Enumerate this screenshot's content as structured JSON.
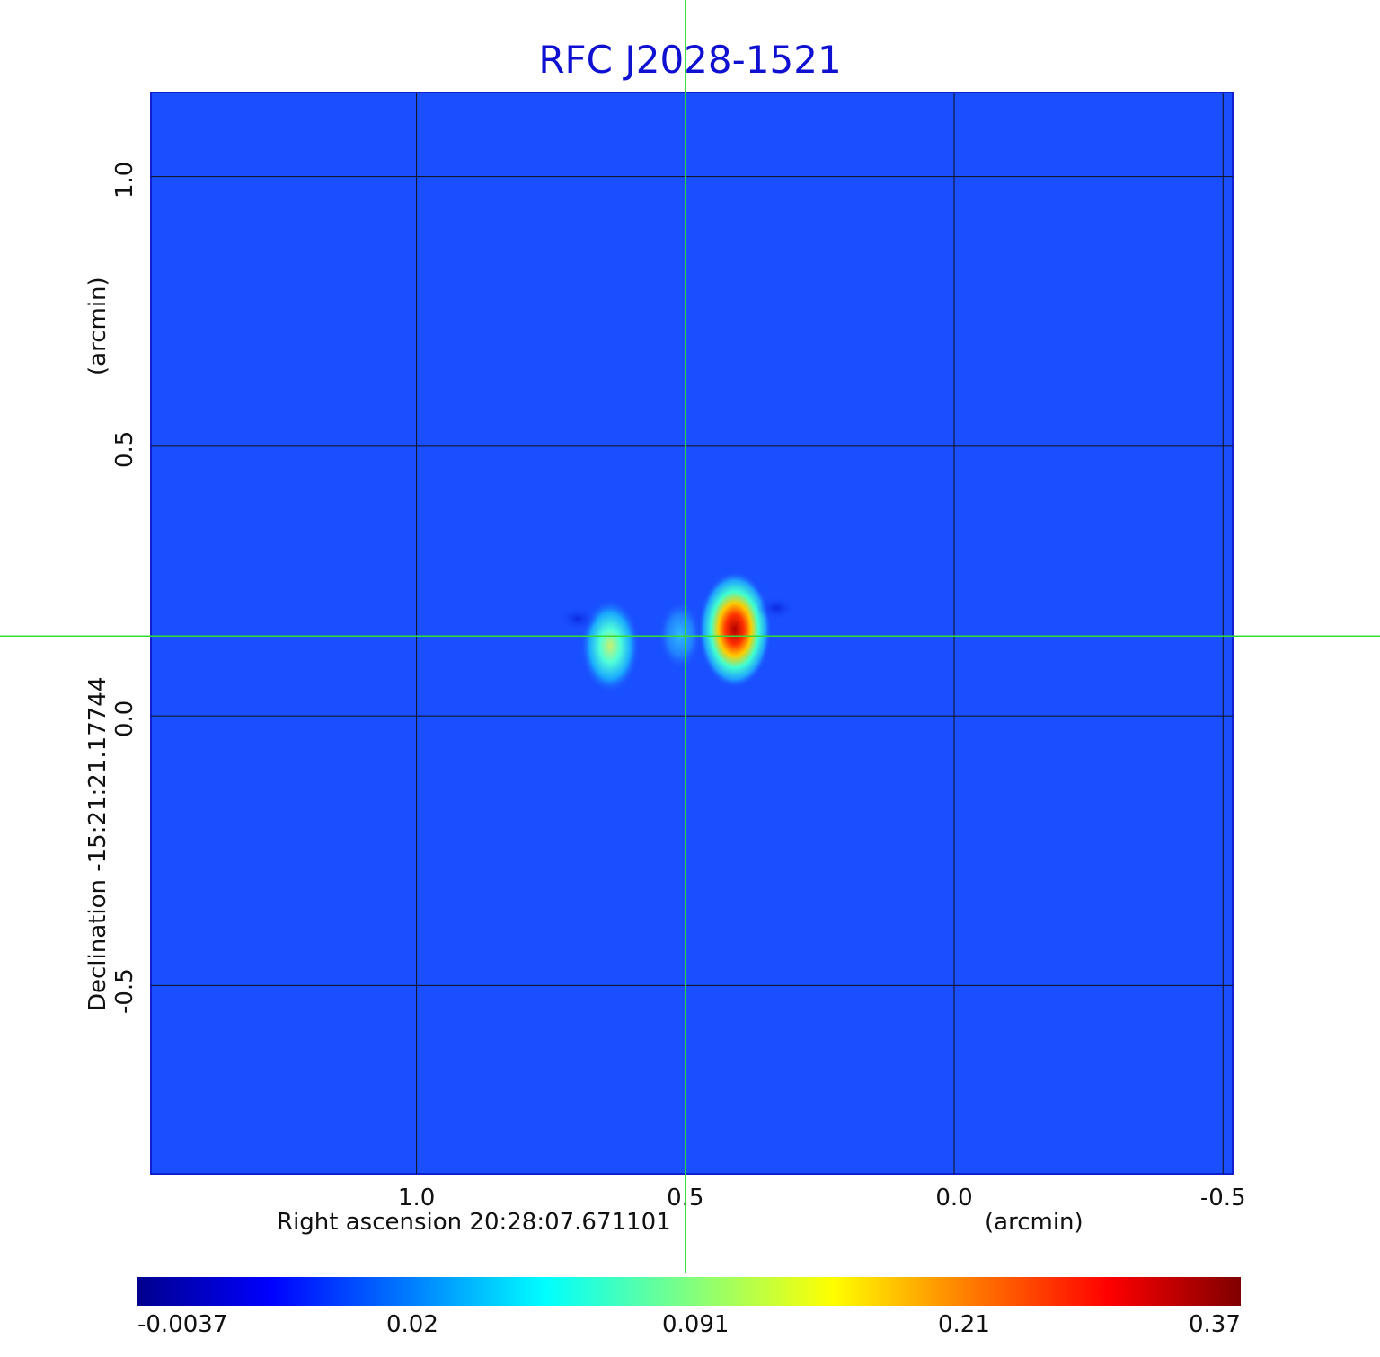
{
  "chart_data": {
    "type": "heatmap",
    "title": "RFC J2028-1521",
    "xlabel": "Right ascension  20:28:07.671101",
    "xunit": "(arcmin)",
    "ylabel": "Declination  -15:21:21.17744",
    "yunit": "(arcmin)",
    "x_ticks": [
      1.0,
      0.5,
      0.0,
      -0.5
    ],
    "x_tick_labels": [
      "1.0",
      "0.5",
      "0.0",
      "-0.5"
    ],
    "y_ticks": [
      1.0,
      0.5,
      0.0,
      -0.5
    ],
    "y_tick_labels": [
      "1.0",
      "0.5",
      "0.0",
      "-0.5"
    ],
    "xlim": [
      1.494,
      -0.518
    ],
    "ylim": [
      -0.849,
      1.156
    ],
    "grid": true,
    "crosshair": {
      "x": 0.5,
      "y": 0.148,
      "color": "#33dd33"
    },
    "sources": [
      {
        "x": 0.408,
        "y": 0.16,
        "peak": 0.37
      },
      {
        "x": 0.64,
        "y": 0.13,
        "peak": 0.11
      },
      {
        "x": 0.51,
        "y": 0.15,
        "peak": 0.03
      }
    ],
    "colorbar": {
      "colormap": "jet",
      "ticks": [
        "-0.0037",
        "0.02",
        "0.091",
        "0.21",
        "0.37"
      ]
    }
  }
}
